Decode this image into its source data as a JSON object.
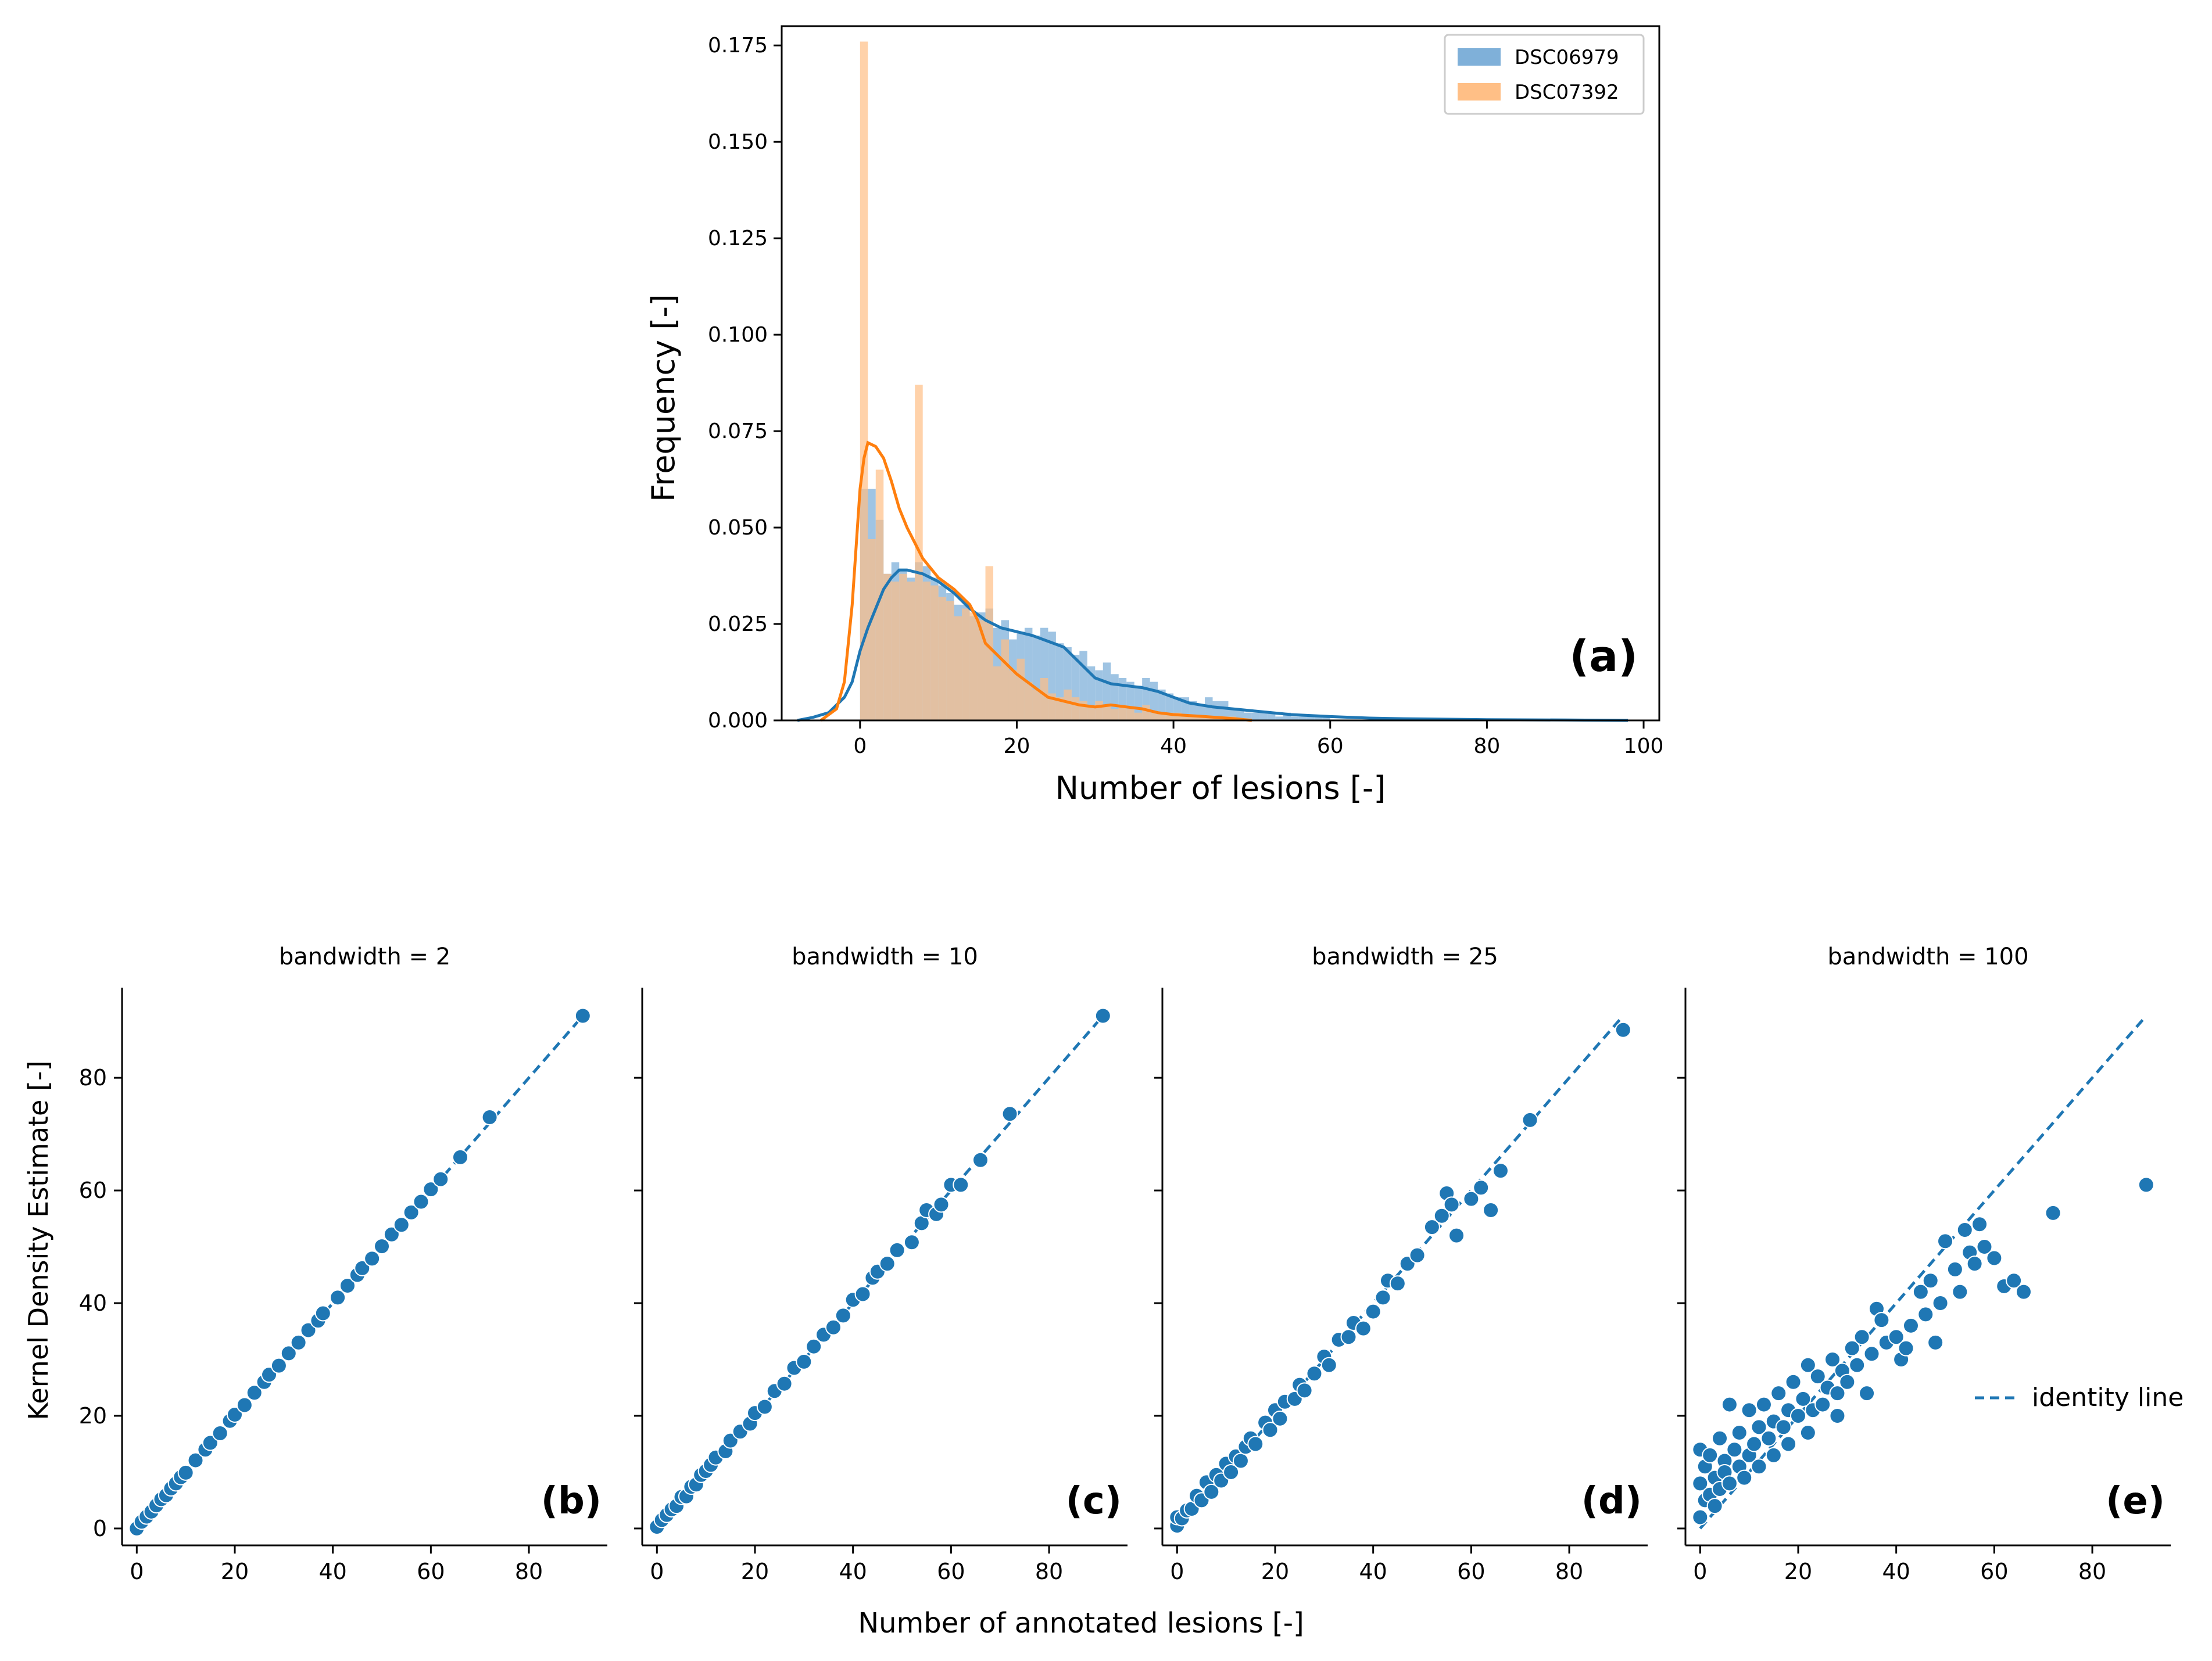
{
  "colors": {
    "blue": "#1f77b4",
    "orange": "#ff7f0e",
    "blue_hist": "#7fb0d9",
    "orange_hist": "#ffbf86",
    "axis": "#000000",
    "legend_frame": "#cccccc"
  },
  "chart_data": [
    {
      "id": "a",
      "type": "bar",
      "title": "",
      "xlabel": "Number of lesions [-]",
      "ylabel": "Frequency [-]",
      "xlim": [
        -10,
        102
      ],
      "ylim": [
        0,
        0.18
      ],
      "xticks": [
        0,
        20,
        40,
        60,
        80,
        100
      ],
      "xtick_labels": [
        "0",
        "20",
        "40",
        "60",
        "80",
        "100"
      ],
      "yticks": [
        0,
        0.025,
        0.05,
        0.075,
        0.1,
        0.125,
        0.15,
        0.175
      ],
      "ytick_labels": [
        "0.000",
        "0.025",
        "0.050",
        "0.075",
        "0.100",
        "0.125",
        "0.150",
        "0.175"
      ],
      "panel_label": "(a)",
      "legend_position": "top-right",
      "bin_width": 1,
      "series": [
        {
          "name": "DSC06979",
          "bins_start": 0,
          "hist": [
            0.06,
            0.06,
            0.052,
            0.038,
            0.041,
            0.039,
            0.037,
            0.041,
            0.04,
            0.037,
            0.035,
            0.033,
            0.03,
            0.03,
            0.027,
            0.028,
            0.029,
            0.024,
            0.026,
            0.021,
            0.023,
            0.024,
            0.022,
            0.024,
            0.023,
            0.02,
            0.019,
            0.017,
            0.018,
            0.014,
            0.013,
            0.015,
            0.012,
            0.011,
            0.01,
            0.009,
            0.011,
            0.01,
            0.008,
            0.007,
            0.006,
            0.006,
            0.005,
            0.004,
            0.006,
            0.005,
            0.005,
            0.003,
            0.003,
            0.002,
            0.002,
            0.002,
            0.002,
            0.001,
            0.002,
            0.001,
            0.001,
            0.001,
            0.001,
            0.001
          ],
          "kde_x": [
            -8,
            -6,
            -4,
            -2,
            -1,
            0,
            1,
            2,
            3,
            4,
            5,
            6,
            8,
            10,
            12,
            14,
            16,
            18,
            20,
            22,
            24,
            26,
            28,
            30,
            32,
            34,
            36,
            38,
            40,
            42,
            45,
            50,
            55,
            60,
            65,
            70,
            80,
            90,
            98
          ],
          "kde_y": [
            0.0,
            0.0008,
            0.002,
            0.006,
            0.01,
            0.018,
            0.024,
            0.029,
            0.034,
            0.037,
            0.039,
            0.039,
            0.038,
            0.036,
            0.033,
            0.029,
            0.026,
            0.024,
            0.023,
            0.022,
            0.0205,
            0.019,
            0.015,
            0.011,
            0.0095,
            0.009,
            0.0085,
            0.0075,
            0.006,
            0.0045,
            0.0035,
            0.0025,
            0.0015,
            0.001,
            0.0006,
            0.0004,
            0.0002,
            0.0001,
            0.0
          ]
        },
        {
          "name": "DSC07392",
          "bins_start": 0,
          "hist": [
            0.176,
            0.047,
            0.065,
            0.038,
            0.036,
            0.038,
            0.036,
            0.087,
            0.036,
            0.035,
            0.032,
            0.031,
            0.027,
            0.029,
            0.028,
            0.026,
            0.04,
            0.014,
            0.021,
            0.013,
            0.016,
            0.01,
            0.008,
            0.011,
            0.007,
            0.006,
            0.008,
            0.006,
            0.005,
            0.004,
            0.005,
            0.004,
            0.003,
            0.004,
            0.003,
            0.002,
            0.004,
            0.002,
            0.002,
            0.002,
            0.002,
            0.001,
            0.001,
            0.001,
            0.001,
            0.001,
            0.001,
            0.001,
            0.0005,
            0.0005
          ],
          "kde_x": [
            -5,
            -3,
            -2,
            -1,
            0,
            0.5,
            1,
            2,
            3,
            4,
            5,
            6,
            7,
            8,
            10,
            12,
            14,
            15,
            16,
            18,
            20,
            22,
            24,
            26,
            28,
            30,
            32,
            34,
            36,
            38,
            40,
            44,
            48,
            50
          ],
          "kde_y": [
            0.0,
            0.003,
            0.01,
            0.03,
            0.06,
            0.068,
            0.072,
            0.071,
            0.068,
            0.062,
            0.055,
            0.05,
            0.046,
            0.042,
            0.037,
            0.034,
            0.03,
            0.026,
            0.02,
            0.016,
            0.012,
            0.009,
            0.006,
            0.005,
            0.004,
            0.0035,
            0.004,
            0.0035,
            0.003,
            0.002,
            0.0015,
            0.001,
            0.0004,
            0.0
          ]
        }
      ]
    },
    {
      "id": "b",
      "type": "scatter",
      "title": "bandwidth = 2",
      "panel_label": "(b)",
      "xlim": [
        -3,
        96
      ],
      "ylim": [
        -3,
        96
      ],
      "xticks": [
        0,
        20,
        40,
        60,
        80
      ],
      "yticks": [
        0,
        20,
        40,
        60,
        80
      ],
      "xtick_labels": [
        "0",
        "20",
        "40",
        "60",
        "80"
      ],
      "ytick_labels": [
        "0",
        "20",
        "40",
        "60",
        "80"
      ],
      "identity_line": [
        0,
        91
      ],
      "x": [
        0,
        1,
        2,
        3,
        4,
        5,
        6,
        7,
        8,
        9,
        10,
        12,
        14,
        15,
        17,
        19,
        20,
        22,
        24,
        26,
        27,
        29,
        31,
        33,
        35,
        37,
        38,
        41,
        43,
        45,
        46,
        48,
        50,
        52,
        54,
        56,
        58,
        60,
        62,
        66,
        72,
        91
      ],
      "y": [
        0,
        1.2,
        2.1,
        3.0,
        4.1,
        5.2,
        5.9,
        7.1,
        8.0,
        9.1,
        9.9,
        12.1,
        14.0,
        15.2,
        16.9,
        19.1,
        20.2,
        21.9,
        24.1,
        26.0,
        27.3,
        28.9,
        31.1,
        33.0,
        35.2,
        36.9,
        38.2,
        41.0,
        43.1,
        45.0,
        46.2,
        47.9,
        50.1,
        52.2,
        53.9,
        56.1,
        58.0,
        60.2,
        62.0,
        65.9,
        73.0,
        91.0
      ]
    },
    {
      "id": "c",
      "type": "scatter",
      "title": "bandwidth = 10",
      "panel_label": "(c)",
      "xlim": [
        -3,
        96
      ],
      "ylim": [
        -3,
        96
      ],
      "xticks": [
        0,
        20,
        40,
        60,
        80
      ],
      "yticks": [
        0,
        20,
        40,
        60,
        80
      ],
      "xtick_labels": [
        "0",
        "20",
        "40",
        "60",
        "80"
      ],
      "ytick_labels": [
        "0",
        "20",
        "40",
        "60",
        "80"
      ],
      "identity_line": [
        0,
        91
      ],
      "x": [
        0,
        1,
        2,
        3,
        4,
        5,
        6,
        7,
        8,
        9,
        10,
        11,
        12,
        14,
        15,
        17,
        19,
        20,
        22,
        24,
        26,
        28,
        30,
        32,
        34,
        36,
        38,
        40,
        42,
        44,
        45,
        47,
        49,
        52,
        54,
        55,
        57,
        58,
        60,
        62,
        66,
        72,
        91
      ],
      "y": [
        0.3,
        1.5,
        2.4,
        3.4,
        4.0,
        5.6,
        5.7,
        7.4,
        7.8,
        9.5,
        10.2,
        11.3,
        12.6,
        13.7,
        15.6,
        17.2,
        18.6,
        20.5,
        21.6,
        24.4,
        25.7,
        28.5,
        29.6,
        32.3,
        34.4,
        35.7,
        37.8,
        40.6,
        41.6,
        44.5,
        45.6,
        47.0,
        49.4,
        50.8,
        54.2,
        56.5,
        55.8,
        57.5,
        61.0,
        61.0,
        65.4,
        73.6,
        91.0
      ]
    },
    {
      "id": "d",
      "type": "scatter",
      "title": "bandwidth = 25",
      "panel_label": "(d)",
      "xlim": [
        -3,
        96
      ],
      "ylim": [
        -3,
        96
      ],
      "xticks": [
        0,
        20,
        40,
        60,
        80
      ],
      "yticks": [
        0,
        20,
        40,
        60,
        80
      ],
      "xtick_labels": [
        "0",
        "20",
        "40",
        "60",
        "80"
      ],
      "ytick_labels": [
        "0",
        "20",
        "40",
        "60",
        "80"
      ],
      "identity_line": [
        0,
        91
      ],
      "x": [
        0,
        0,
        1,
        2,
        3,
        4,
        5,
        6,
        7,
        8,
        9,
        10,
        11,
        12,
        13,
        14,
        15,
        16,
        18,
        19,
        20,
        21,
        22,
        24,
        25,
        26,
        28,
        30,
        31,
        33,
        35,
        36,
        38,
        40,
        42,
        43,
        45,
        47,
        49,
        52,
        54,
        55,
        56,
        57,
        60,
        62,
        64,
        66,
        72,
        91
      ],
      "y": [
        0.5,
        2,
        1.8,
        3.2,
        3.5,
        5.8,
        5.0,
        8.2,
        6.5,
        9.5,
        8.5,
        11.5,
        10.0,
        12.8,
        12.0,
        14.5,
        16.0,
        15.0,
        18.8,
        17.5,
        21.0,
        19.5,
        22.5,
        23.0,
        25.5,
        24.5,
        27.5,
        30.5,
        29.0,
        33.5,
        34.0,
        36.5,
        35.5,
        38.5,
        41.0,
        44.0,
        43.5,
        47.0,
        48.5,
        53.5,
        55.5,
        59.5,
        57.5,
        52.0,
        58.5,
        60.5,
        56.5,
        63.5,
        72.5,
        88.5
      ]
    },
    {
      "id": "e",
      "type": "scatter",
      "title": "bandwidth = 100",
      "panel_label": "(e)",
      "xlim": [
        -3,
        96
      ],
      "ylim": [
        -3,
        96
      ],
      "xticks": [
        0,
        20,
        40,
        60,
        80
      ],
      "yticks": [
        0,
        20,
        40,
        60,
        80
      ],
      "xtick_labels": [
        "0",
        "20",
        "40",
        "60",
        "80"
      ],
      "ytick_labels": [
        "0",
        "20",
        "40",
        "60",
        "80"
      ],
      "identity_line": [
        0,
        91
      ],
      "legend_label": "identity line",
      "legend_position": "right",
      "x": [
        0,
        0,
        0,
        1,
        1,
        2,
        2,
        3,
        3,
        4,
        4,
        5,
        5,
        6,
        6,
        7,
        8,
        8,
        9,
        10,
        10,
        11,
        12,
        12,
        13,
        14,
        15,
        15,
        16,
        17,
        18,
        18,
        19,
        20,
        21,
        22,
        22,
        23,
        24,
        25,
        26,
        27,
        28,
        28,
        29,
        30,
        31,
        32,
        33,
        34,
        35,
        36,
        37,
        38,
        40,
        41,
        42,
        43,
        45,
        46,
        47,
        48,
        49,
        50,
        52,
        53,
        54,
        55,
        56,
        57,
        58,
        60,
        62,
        64,
        66,
        72,
        91
      ],
      "y": [
        14,
        2,
        8,
        11,
        5,
        13,
        6,
        9,
        4,
        16,
        7,
        12,
        10,
        22,
        8,
        14,
        11,
        17,
        9,
        21,
        13,
        15,
        18,
        11,
        22,
        16,
        19,
        13,
        24,
        18,
        21,
        15,
        26,
        20,
        23,
        29,
        17,
        21,
        27,
        22,
        25,
        30,
        24,
        20,
        28,
        26,
        32,
        29,
        34,
        24,
        31,
        39,
        37,
        33,
        34,
        30,
        32,
        36,
        42,
        38,
        44,
        33,
        40,
        51,
        46,
        42,
        53,
        49,
        47,
        54,
        50,
        48,
        43,
        44,
        42,
        56,
        61
      ]
    }
  ],
  "shared": {
    "ylabel": "Kernel Density Estimate [-]",
    "xlabel": "Number of annotated lesions [-]"
  }
}
